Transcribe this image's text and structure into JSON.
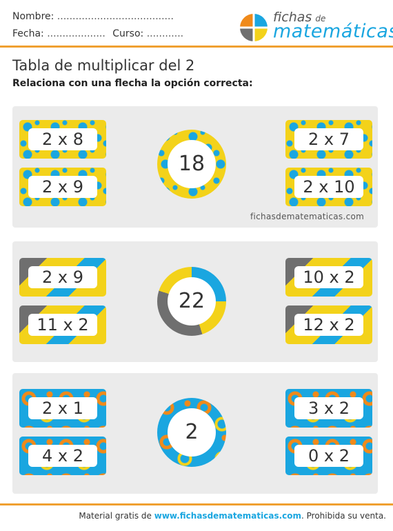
{
  "header": {
    "name_label": "Nombre:",
    "name_dots": "......................................",
    "date_label": "Fecha:",
    "date_dots": "...................",
    "course_label": "Curso:",
    "course_dots": "............"
  },
  "logo": {
    "line1": "fichas",
    "line1_small": "de",
    "line2": "matemáticas"
  },
  "title": "Tabla de multiplicar del 2",
  "subtitle": "Relaciona con una flecha la opción correcta:",
  "panels": [
    {
      "left": [
        "2 x 8",
        "2 x 9"
      ],
      "center": "18",
      "right": [
        "2 x 7",
        "2 x 10"
      ]
    },
    {
      "left": [
        "2 x 9",
        "11 x 2"
      ],
      "center": "22",
      "right": [
        "10 x 2",
        "12 x 2"
      ]
    },
    {
      "left": [
        "2 x 1",
        "4 x 2"
      ],
      "center": "2",
      "right": [
        "3 x 2",
        "0 x 2"
      ]
    }
  ],
  "watermark": "fichasdematematicas.com",
  "footer": {
    "prefix": "Material gratis de ",
    "link": "www.fichasdematematicas.com",
    "suffix": ". Prohibida su venta."
  },
  "colors": {
    "yellow": "#f3d21a",
    "blue": "#1aa6e0",
    "grey": "#6f6f6f",
    "orange": "#f08a1a",
    "rule": "#f0a030"
  }
}
